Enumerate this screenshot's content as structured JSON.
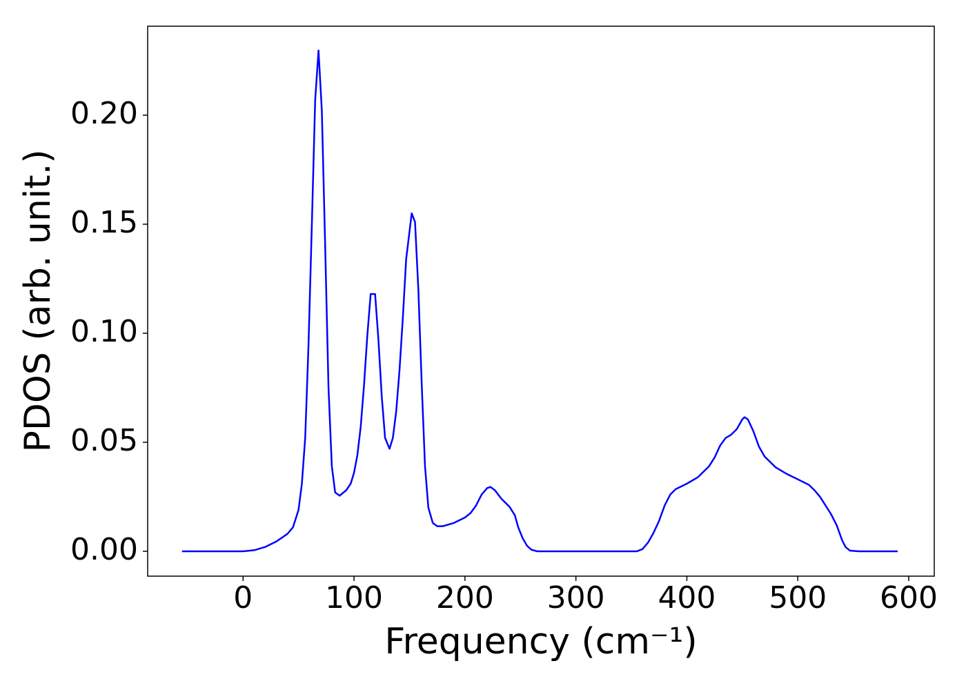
{
  "chart_data": {
    "type": "line",
    "xlabel": "Frequency (cm⁻¹)",
    "ylabel": "PDOS (arb. unit.)",
    "xlim": [
      -86,
      623
    ],
    "ylim": [
      -0.0114,
      0.2408
    ],
    "xticks": [
      0,
      100,
      200,
      300,
      400,
      500,
      600
    ],
    "yticks": [
      {
        "value": 0,
        "label": "0.00"
      },
      0.05,
      {
        "value": 0.1,
        "label": "0.10"
      },
      0.15,
      {
        "value": 0.2,
        "label": "0.20"
      }
    ],
    "x": [
      -55,
      0,
      10,
      20,
      30,
      40,
      45,
      50,
      53,
      56,
      59,
      62,
      65,
      68,
      71,
      74,
      77,
      80,
      83,
      87,
      93,
      97,
      100,
      103,
      106,
      109,
      112,
      115,
      119,
      122,
      125,
      128,
      132,
      135,
      138,
      141,
      144,
      147,
      152,
      155,
      158,
      161,
      164,
      167,
      171,
      175,
      180,
      190,
      200,
      205,
      210,
      215,
      220,
      223,
      227,
      233,
      240,
      245,
      248,
      252,
      256,
      260,
      265,
      355,
      360,
      365,
      370,
      375,
      380,
      385,
      390,
      400,
      410,
      420,
      425,
      430,
      435,
      440,
      445,
      450,
      452,
      455,
      460,
      465,
      470,
      480,
      490,
      500,
      510,
      515,
      520,
      530,
      535,
      540,
      543,
      547,
      555,
      590
    ],
    "series": [
      {
        "name": "PDOS",
        "color": "#0000ff",
        "values": [
          0,
          0,
          0.0005,
          0.002,
          0.0045,
          0.008,
          0.011,
          0.019,
          0.031,
          0.052,
          0.095,
          0.15,
          0.207,
          0.2297,
          0.202,
          0.14,
          0.075,
          0.039,
          0.027,
          0.0255,
          0.028,
          0.031,
          0.036,
          0.044,
          0.057,
          0.076,
          0.099,
          0.118,
          0.118,
          0.097,
          0.071,
          0.052,
          0.047,
          0.052,
          0.064,
          0.083,
          0.107,
          0.134,
          0.155,
          0.151,
          0.12,
          0.077,
          0.039,
          0.02,
          0.013,
          0.0115,
          0.0115,
          0.013,
          0.0155,
          0.0175,
          0.021,
          0.026,
          0.029,
          0.0295,
          0.028,
          0.024,
          0.0205,
          0.0165,
          0.011,
          0.006,
          0.0025,
          0.0007,
          0,
          0,
          0.001,
          0.004,
          0.0085,
          0.014,
          0.021,
          0.026,
          0.0285,
          0.031,
          0.034,
          0.039,
          0.043,
          0.0485,
          0.052,
          0.0535,
          0.056,
          0.0605,
          0.0615,
          0.0605,
          0.055,
          0.048,
          0.0435,
          0.0385,
          0.0355,
          0.033,
          0.0305,
          0.028,
          0.025,
          0.017,
          0.012,
          0.005,
          0.002,
          0.0003,
          0,
          0
        ]
      }
    ]
  }
}
